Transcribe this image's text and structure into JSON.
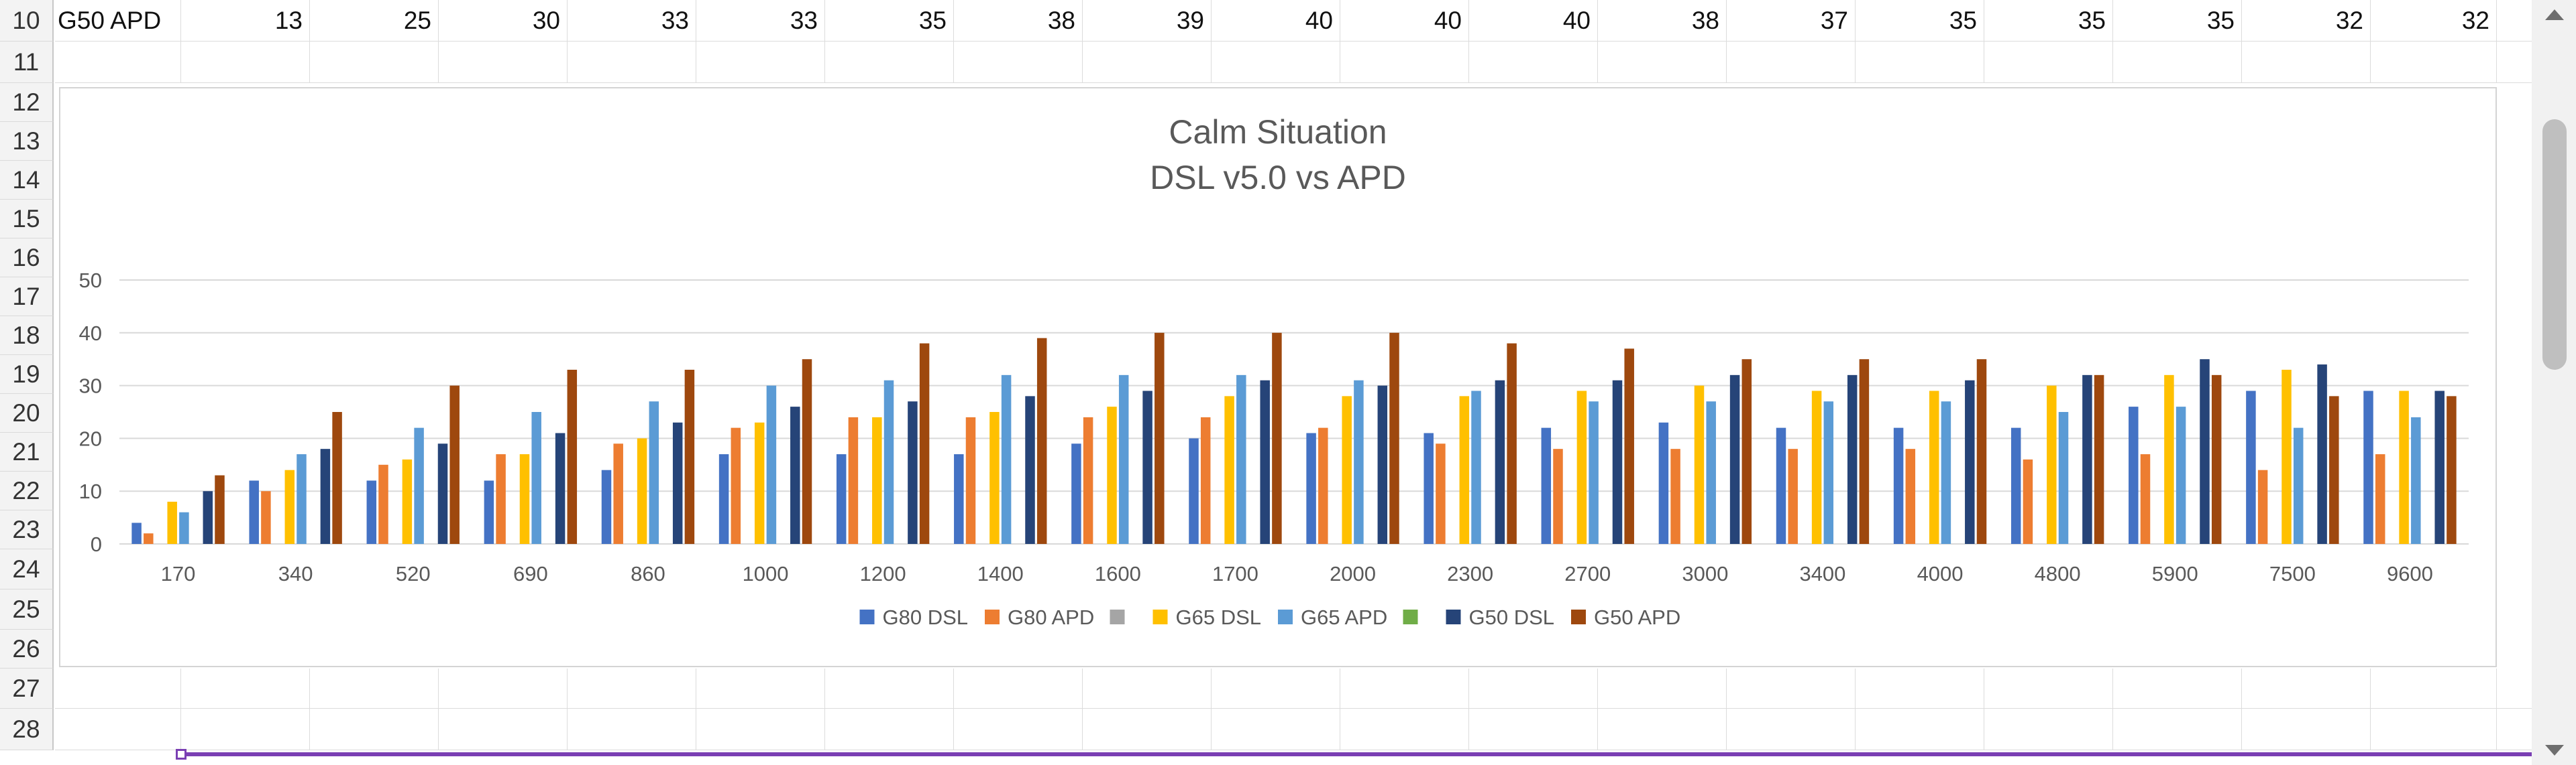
{
  "sheet": {
    "row_numbers": [
      "10",
      "11",
      "12",
      "13",
      "14",
      "15",
      "16",
      "17",
      "18",
      "19",
      "20",
      "21",
      "22",
      "23",
      "24",
      "25",
      "26",
      "27",
      "28"
    ],
    "row10": {
      "label": "G50 APD",
      "values": [
        "13",
        "25",
        "30",
        "33",
        "33",
        "35",
        "38",
        "39",
        "40",
        "40",
        "40",
        "38",
        "37",
        "35",
        "35",
        "35",
        "32",
        "32"
      ]
    }
  },
  "chart_data": {
    "type": "bar",
    "title": "Calm Situation",
    "subtitle": "DSL v5.0 vs APD",
    "categories": [
      "170",
      "340",
      "520",
      "690",
      "860",
      "1000",
      "1200",
      "1400",
      "1600",
      "1700",
      "2000",
      "2300",
      "2700",
      "3000",
      "3400",
      "4000",
      "4800",
      "5900",
      "7500",
      "9600"
    ],
    "ylim": [
      0,
      50
    ],
    "yticks": [
      "0",
      "10",
      "20",
      "30",
      "40",
      "50"
    ],
    "grid": true,
    "legend_position": "bottom",
    "series": [
      {
        "name": "G80 DSL",
        "color": "#4472c4",
        "values": [
          4,
          12,
          12,
          12,
          14,
          17,
          17,
          17,
          19,
          20,
          21,
          21,
          22,
          23,
          22,
          22,
          22,
          26,
          29,
          29
        ]
      },
      {
        "name": "G80 APD",
        "color": "#ed7d31",
        "values": [
          2,
          10,
          15,
          17,
          19,
          22,
          24,
          24,
          24,
          24,
          22,
          19,
          18,
          18,
          18,
          18,
          16,
          17,
          14,
          17
        ]
      },
      {
        "name": "",
        "color": "#a5a5a5",
        "values": [
          0,
          0,
          0,
          0,
          0,
          0,
          0,
          0,
          0,
          0,
          0,
          0,
          0,
          0,
          0,
          0,
          0,
          0,
          0,
          0
        ]
      },
      {
        "name": "G65 DSL",
        "color": "#ffc000",
        "values": [
          8,
          14,
          16,
          17,
          20,
          23,
          24,
          25,
          26,
          28,
          28,
          28,
          29,
          30,
          29,
          29,
          30,
          32,
          33,
          29
        ]
      },
      {
        "name": "G65 APD",
        "color": "#5b9bd5",
        "values": [
          6,
          17,
          22,
          25,
          27,
          30,
          31,
          32,
          32,
          32,
          31,
          29,
          27,
          27,
          27,
          27,
          25,
          26,
          22,
          24
        ]
      },
      {
        "name": "",
        "color": "#70ad47",
        "values": [
          0,
          0,
          0,
          0,
          0,
          0,
          0,
          0,
          0,
          0,
          0,
          0,
          0,
          0,
          0,
          0,
          0,
          0,
          0,
          0
        ]
      },
      {
        "name": "G50 DSL",
        "color": "#264478",
        "values": [
          10,
          18,
          19,
          21,
          23,
          26,
          27,
          28,
          29,
          31,
          30,
          31,
          31,
          32,
          32,
          31,
          32,
          35,
          34,
          29
        ]
      },
      {
        "name": "G50 APD",
        "color": "#9e480e",
        "values": [
          13,
          25,
          30,
          33,
          33,
          35,
          38,
          39,
          40,
          40,
          40,
          38,
          37,
          35,
          35,
          35,
          32,
          32,
          28,
          28
        ]
      }
    ]
  }
}
